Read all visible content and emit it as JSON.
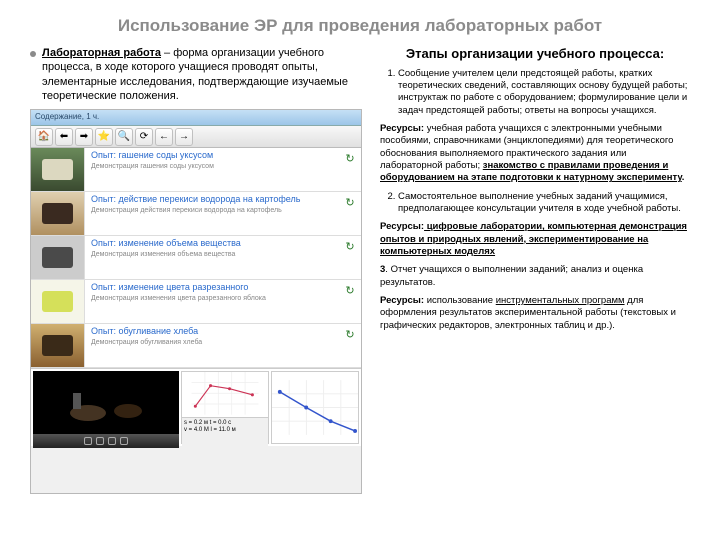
{
  "title": "Использование ЭР для проведения лабораторных работ",
  "left": {
    "definition_term": "Лабораторная работа",
    "definition_rest": " – форма организации учебного процесса, в ходе которого учащиеся проводят опыты, элементарные исследования, подтверждающие изучаемые теоретические положения."
  },
  "screenshot": {
    "header": "Содержание, 1 ч.",
    "toolbar_icons": [
      "🏠",
      "⬅",
      "➡",
      "⭐",
      "🔍",
      "⟳",
      "←",
      "→"
    ],
    "experiments": [
      {
        "title": "Опыт: гашение соды уксусом",
        "sub": "Демонстрация гашения соды уксусом",
        "thumb_bg": "linear-gradient(#6a8a5a,#3a4a30)",
        "thumb_accent": "#dcd8c0",
        "icon": "↻",
        "icon_color": "#2a7a2a"
      },
      {
        "title": "Опыт: действие перекиси водорода на картофель",
        "sub": "Демонстрация действия перекиси водорода на картофель",
        "thumb_bg": "linear-gradient(#e0d0b0,#b09060)",
        "thumb_accent": "#3a2a20",
        "icon": "↻",
        "icon_color": "#2a7a2a"
      },
      {
        "title": "Опыт: изменение объема вещества",
        "sub": "Демонстрация изменения объема вещества",
        "thumb_bg": "#cccccc",
        "thumb_accent": "#4a4a4a",
        "icon": "↻",
        "icon_color": "#2a7a2a"
      },
      {
        "title": "Опыт: изменение цвета разрезанного",
        "sub": "Демонстрация изменения цвета разрезанного яблока",
        "thumb_bg": "#f5f5e8",
        "thumb_accent": "#d5e05a",
        "icon": "↻",
        "icon_color": "#2a7a2a"
      },
      {
        "title": "Опыт: обугливание хлеба",
        "sub": "Демонстрация обугливания хлеба",
        "thumb_bg": "linear-gradient(#d0b070,#8a6030)",
        "thumb_accent": "#3a2a18",
        "icon": "↻",
        "icon_color": "#2a7a2a"
      }
    ],
    "graph1": {
      "line_color": "#cc3355",
      "points": [
        [
          5,
          45
        ],
        [
          25,
          18
        ],
        [
          50,
          22
        ],
        [
          80,
          30
        ]
      ]
    },
    "graph2": {
      "line_color": "#3355cc",
      "points": [
        [
          8,
          12
        ],
        [
          35,
          28
        ],
        [
          60,
          42
        ],
        [
          85,
          52
        ]
      ]
    },
    "footer_lines": [
      "s = 0.2 м   t = 0.0 с",
      "v = 4.0 М   l = 11.0 м"
    ]
  },
  "right": {
    "heading": "Этапы организации учебного процесса:",
    "item1": "Сообщение учителем цели предстоящей работы, кратких теоретических сведений, составляющих основу будущей работы; инструктаж по работе с оборудованием; формулирование цели и задач предстоящей работы; ответы на вопросы учащихся.",
    "res1_prefix": "Ресурсы:",
    "res1_body": " учебная работа учащихся с электронными учебными пособиями, справочниками (энциклопедиями) для теоретического обоснования выполняемого практического задания или лабораторной работы; ",
    "res1_under": "знакомство с правилами проведения и оборудованием на этапе подготовки к натурному эксперименту",
    "item2": "Самостоятельное выполнение учебных заданий учащимися, предполагающее консультации учителя в ходе учебной работы.",
    "res2_prefix": "Ресурсы:",
    "res2_under": " цифровые лаборатории, компьютерная демонстрация опытов и природных явлений, экспериментирование на компьютерных моделях",
    "item3_prefix": "3",
    "item3_body": ". Отчет учащихся о выполнении заданий; анализ и оценка результатов.",
    "res3_prefix": "Ресурсы:",
    "res3_body1": " использование ",
    "res3_under": "инструментальных программ",
    "res3_body2": " для оформления результатов экспериментальной работы (текстовых и графических редакторов, электронных таблиц и др.)."
  }
}
